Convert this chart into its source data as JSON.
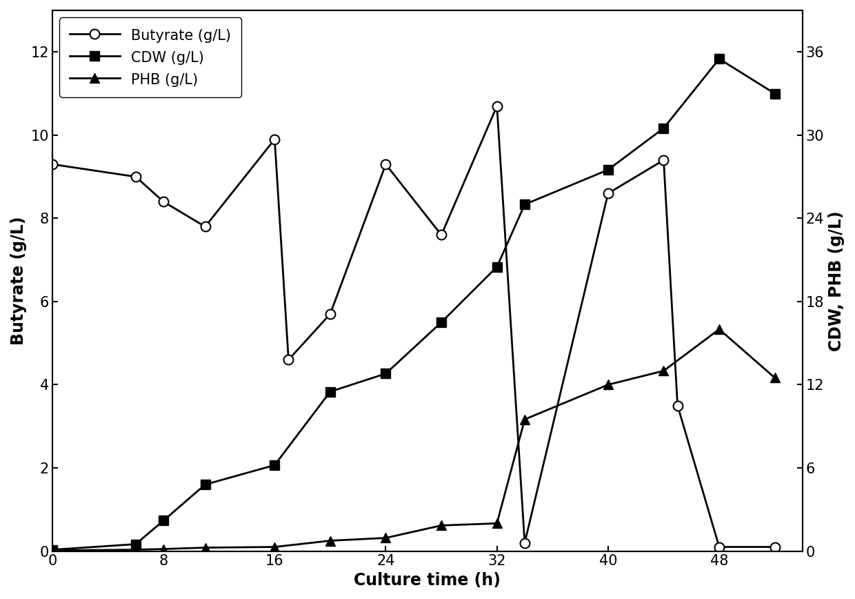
{
  "butyrate_x": [
    0,
    6,
    8,
    11,
    16,
    17,
    20,
    24,
    28,
    32,
    34,
    40,
    44,
    45,
    48,
    52
  ],
  "butyrate_y": [
    9.3,
    9.0,
    8.4,
    7.8,
    9.9,
    4.6,
    5.7,
    9.3,
    7.6,
    10.7,
    0.2,
    8.6,
    9.4,
    3.5,
    0.1,
    0.1
  ],
  "cdw_x": [
    0,
    6,
    8,
    11,
    16,
    20,
    24,
    28,
    32,
    34,
    40,
    44,
    48,
    52
  ],
  "cdw_y": [
    0.1,
    0.5,
    2.2,
    4.8,
    6.2,
    11.5,
    12.8,
    16.5,
    20.5,
    25.0,
    27.5,
    30.5,
    35.5,
    33.0
  ],
  "phb_x": [
    0,
    6,
    8,
    11,
    16,
    20,
    24,
    28,
    32,
    34,
    40,
    44,
    48,
    52
  ],
  "phb_y": [
    0.05,
    0.1,
    0.15,
    0.25,
    0.3,
    0.75,
    0.95,
    1.85,
    2.0,
    9.5,
    12.0,
    13.0,
    16.0,
    12.5
  ],
  "butyrate_color": "#000000",
  "cdw_color": "#000000",
  "phb_color": "#000000",
  "xlabel": "Culture time (h)",
  "ylabel_left": "Butyrate (g/L)",
  "ylabel_right": "CDW, PHB (g/L)",
  "xlim": [
    0,
    54
  ],
  "ylim_left": [
    0,
    13
  ],
  "ylim_right": [
    0,
    39
  ],
  "xticks": [
    0,
    8,
    16,
    24,
    32,
    40,
    48
  ],
  "yticks_left": [
    0,
    2,
    4,
    6,
    8,
    10,
    12
  ],
  "yticks_right": [
    0,
    6,
    12,
    18,
    24,
    30,
    36
  ],
  "legend_labels": [
    "Butyrate (g/L)",
    "CDW (g/L)",
    "PHB (g/L)"
  ],
  "label_fontsize": 17,
  "tick_fontsize": 15,
  "legend_fontsize": 15,
  "linewidth": 2.0,
  "markersize": 10,
  "background_color": "#ffffff"
}
